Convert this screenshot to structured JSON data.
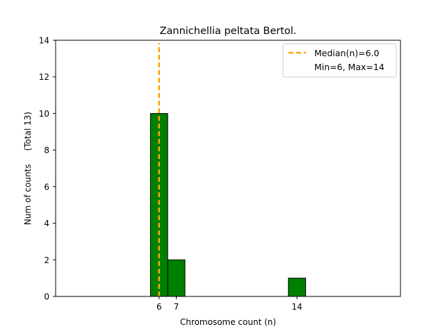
{
  "chart_data": {
    "type": "bar",
    "title": "Zannichellia peltata Bertol.",
    "xlabel": "Chromosome count (n)",
    "ylabel": "Num of counts     (Total 13)",
    "xlim": [
      0,
      20
    ],
    "ylim": [
      0,
      14
    ],
    "x_ticks": [
      6,
      7,
      14
    ],
    "y_ticks": [
      0,
      2,
      4,
      6,
      8,
      10,
      12,
      14
    ],
    "bar_width": 1,
    "bars": [
      {
        "x": 6,
        "value": 10
      },
      {
        "x": 7,
        "value": 2
      },
      {
        "x": 14,
        "value": 1
      }
    ],
    "median": 6.0,
    "bar_color": "#008000",
    "bar_edge_color": "#000000",
    "median_color": "#FFA500",
    "legend": {
      "placement": "top-right",
      "entries": [
        "Median(n)=6.0",
        "Min=6, Max=14"
      ]
    },
    "grid": false
  }
}
